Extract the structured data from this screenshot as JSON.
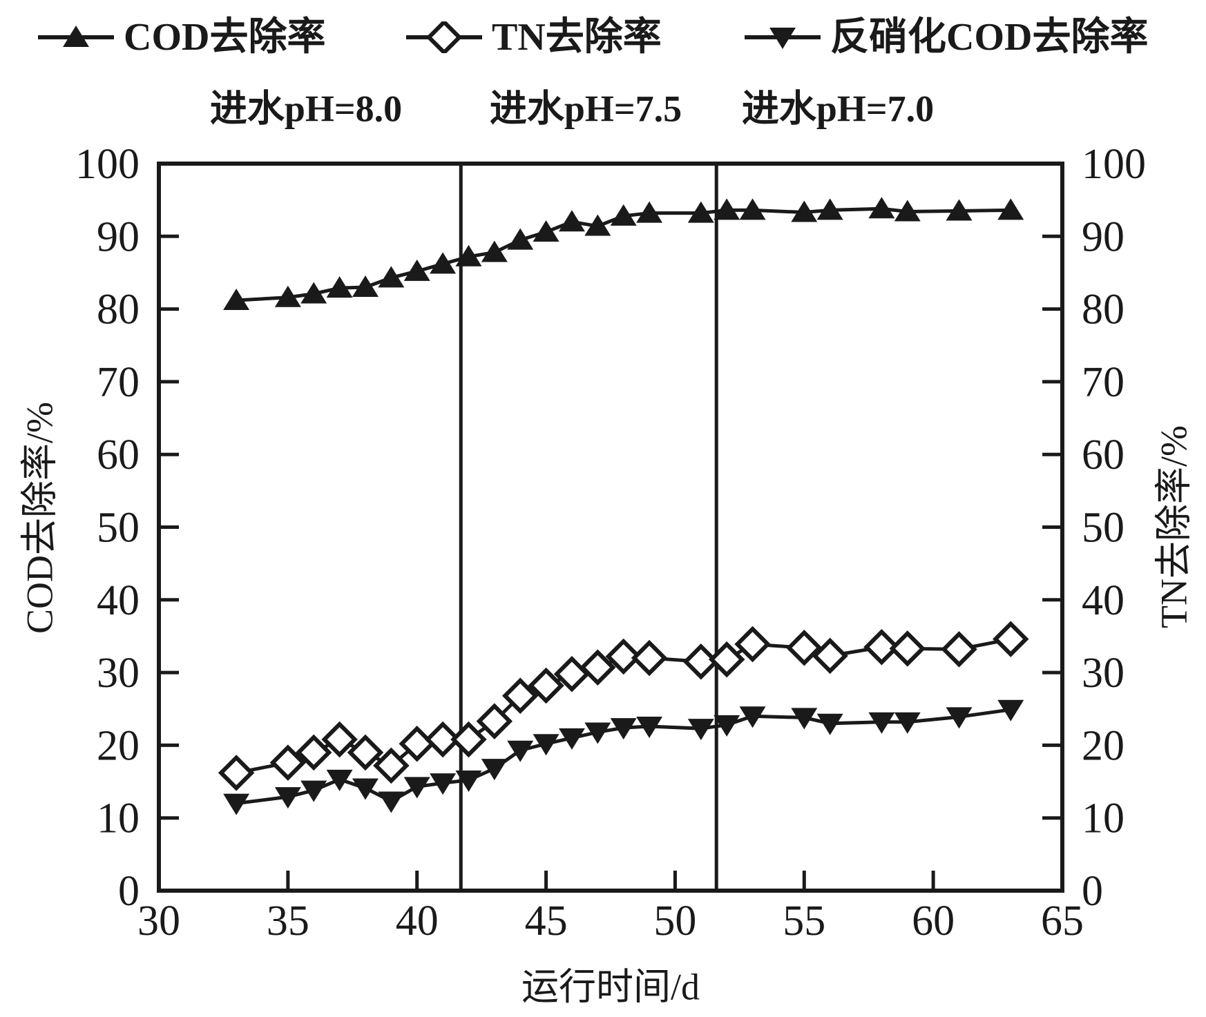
{
  "chart_data": {
    "type": "line",
    "title": "",
    "xlabel": "运行时间/d",
    "ylabel_left": "COD去除率/%",
    "ylabel_right": "TN去除率/%",
    "xlim": [
      30,
      65
    ],
    "ylim_left": [
      0,
      100
    ],
    "ylim_right": [
      0,
      100
    ],
    "x_ticks": [
      30,
      35,
      40,
      45,
      50,
      55,
      60,
      65
    ],
    "y_ticks": [
      0,
      10,
      20,
      30,
      40,
      50,
      60,
      70,
      80,
      90,
      100
    ],
    "grid": false,
    "legend_position": "top",
    "color": "#1a1a1a",
    "marker_fill_open": "#ffffff",
    "phase_dividers_x": [
      41.7,
      51.6
    ],
    "phase_labels": [
      "进水pH=8.0",
      "进水pH=7.5",
      "进水pH=7.0"
    ],
    "x": [
      33,
      35,
      36,
      37,
      38,
      39,
      40,
      41,
      42,
      43,
      44,
      45,
      46,
      47,
      48,
      49,
      51,
      52,
      53,
      55,
      56,
      58,
      59,
      61,
      63
    ],
    "series": [
      {
        "name": "COD去除率",
        "axis": "left",
        "marker": "triangle-up",
        "fill": "solid",
        "values": [
          81.2,
          81.6,
          82.1,
          82.9,
          83.0,
          84.3,
          85.2,
          86.2,
          87.2,
          87.8,
          89.5,
          90.6,
          92.0,
          91.4,
          92.8,
          93.2,
          93.2,
          93.6,
          93.6,
          93.3,
          93.6,
          93.8,
          93.4,
          93.5,
          93.6
        ]
      },
      {
        "name": "TN去除率",
        "axis": "right",
        "marker": "diamond",
        "fill": "open",
        "values": [
          16.2,
          17.6,
          19.0,
          20.8,
          19.0,
          17.2,
          20.2,
          20.8,
          20.8,
          23.3,
          26.8,
          28.2,
          29.8,
          30.7,
          32.2,
          32.0,
          31.5,
          31.8,
          33.9,
          33.4,
          32.3,
          33.5,
          33.3,
          33.2,
          34.6
        ]
      },
      {
        "name": "反硝化COD去除率",
        "axis": "left",
        "marker": "triangle-down",
        "fill": "solid",
        "values": [
          12.0,
          12.9,
          13.8,
          15.3,
          14.1,
          12.3,
          14.3,
          14.8,
          15.2,
          16.8,
          19.3,
          20.2,
          21.0,
          21.8,
          22.4,
          22.6,
          22.3,
          22.8,
          24.0,
          23.8,
          23.0,
          23.2,
          23.2,
          23.9,
          24.9
        ]
      }
    ]
  }
}
